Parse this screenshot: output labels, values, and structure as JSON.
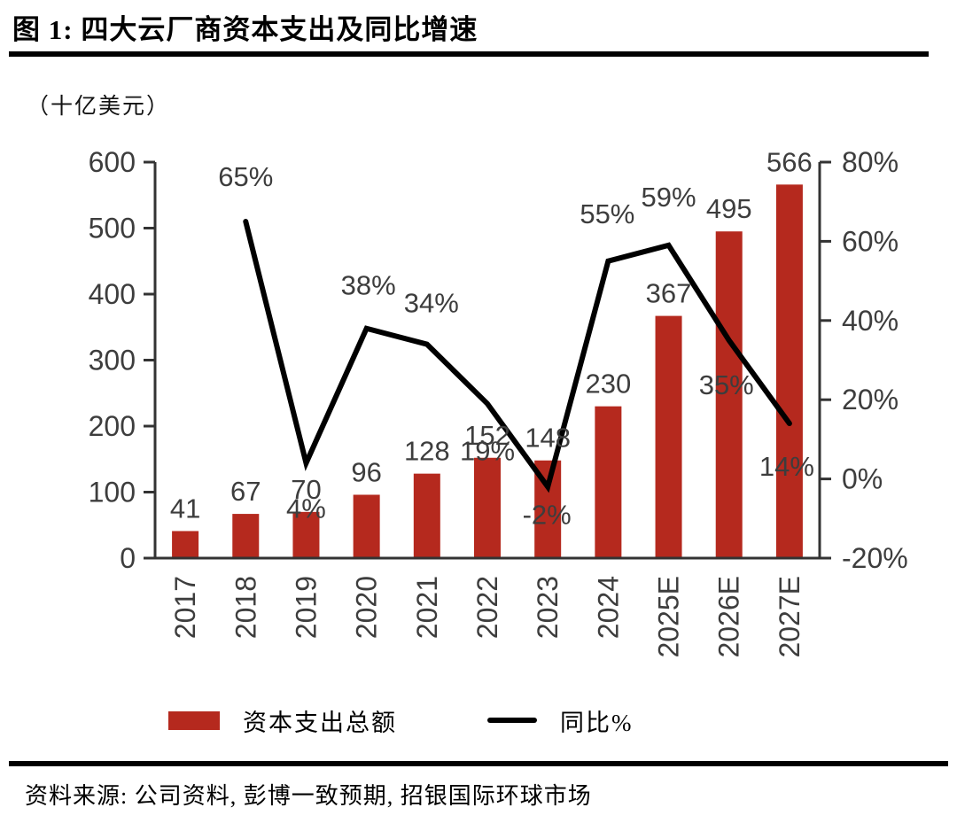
{
  "header": {
    "title": "图 1: 四大云厂商资本支出及同比增速"
  },
  "chart_data": {
    "type": "bar",
    "combo": "bar+line-dual-axis",
    "title": "图 1: 四大云厂商资本支出及同比增速",
    "unit_label": "（十亿美元）",
    "categories": [
      "2017",
      "2018",
      "2019",
      "2020",
      "2021",
      "2022",
      "2023",
      "2024",
      "2025E",
      "2026E",
      "2027E"
    ],
    "series": [
      {
        "name": "资本支出总额",
        "type": "bar",
        "axis": "left",
        "color": "#b5291e",
        "values": [
          41,
          67,
          70,
          96,
          128,
          152,
          148,
          230,
          367,
          495,
          566
        ]
      },
      {
        "name": "同比%",
        "type": "line",
        "axis": "right",
        "color": "#000000",
        "values": [
          null,
          65,
          4,
          38,
          34,
          19,
          -2,
          55,
          59,
          35,
          14
        ],
        "labels": [
          null,
          "65%",
          "4%",
          "38%",
          "34%",
          "19%",
          "-2%",
          "55%",
          "59%",
          "35%",
          "14%"
        ],
        "label_offsets": [
          null,
          [
            0,
            -40
          ],
          [
            0,
            62
          ],
          [
            2,
            -38
          ],
          [
            5,
            -36
          ],
          [
            0,
            64
          ],
          [
            -1,
            42
          ],
          [
            -1,
            -43
          ],
          [
            0,
            -44
          ],
          [
            -3,
            61
          ],
          [
            -3,
            59
          ]
        ]
      }
    ],
    "left_axis": {
      "min": 0,
      "max": 600,
      "ticks": [
        0,
        100,
        200,
        300,
        400,
        500,
        600
      ]
    },
    "right_axis": {
      "min": -20,
      "max": 80,
      "tick_values": [
        -20,
        0,
        20,
        40,
        60,
        80
      ],
      "tick_labels": [
        "-20%",
        "0%",
        "20%",
        "40%",
        "60%",
        "80%"
      ]
    },
    "legend_position": "bottom",
    "grid": false,
    "text_color": "#3d3d3d",
    "axis_color": "#333333"
  },
  "legend": {
    "bar_label": "资本支出总额",
    "line_label": "同比%"
  },
  "footer": {
    "source": "资料来源: 公司资料, 彭博一致预期, 招银国际环球市场"
  }
}
